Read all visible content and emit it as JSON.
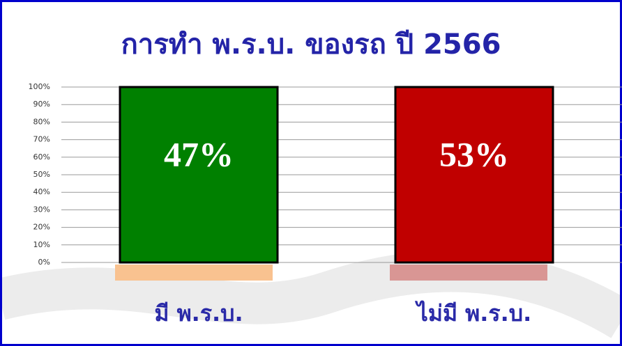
{
  "chart_data": {
    "type": "bar",
    "title": "การทำ พ.ร.บ. ของรถ ปี 2566",
    "categories": [
      "มี พ.ร.บ.",
      "ไม่มี พ.ร.บ."
    ],
    "values": [
      47,
      53
    ],
    "value_labels": [
      "47%",
      "53%"
    ],
    "colors": [
      "#008000",
      "#c00000"
    ],
    "ylim": [
      0,
      100
    ],
    "yticks": [
      {
        "value": 0,
        "label": "0%"
      },
      {
        "value": 10,
        "label": "10%"
      },
      {
        "value": 20,
        "label": "20%"
      },
      {
        "value": 30,
        "label": "30%"
      },
      {
        "value": 40,
        "label": "40%"
      },
      {
        "value": 50,
        "label": "50%"
      },
      {
        "value": 60,
        "label": "60%"
      },
      {
        "value": 70,
        "label": "70%"
      },
      {
        "value": 80,
        "label": "80%"
      },
      {
        "value": 90,
        "label": "90%"
      },
      {
        "value": 100,
        "label": "100%"
      }
    ],
    "grid": true
  }
}
